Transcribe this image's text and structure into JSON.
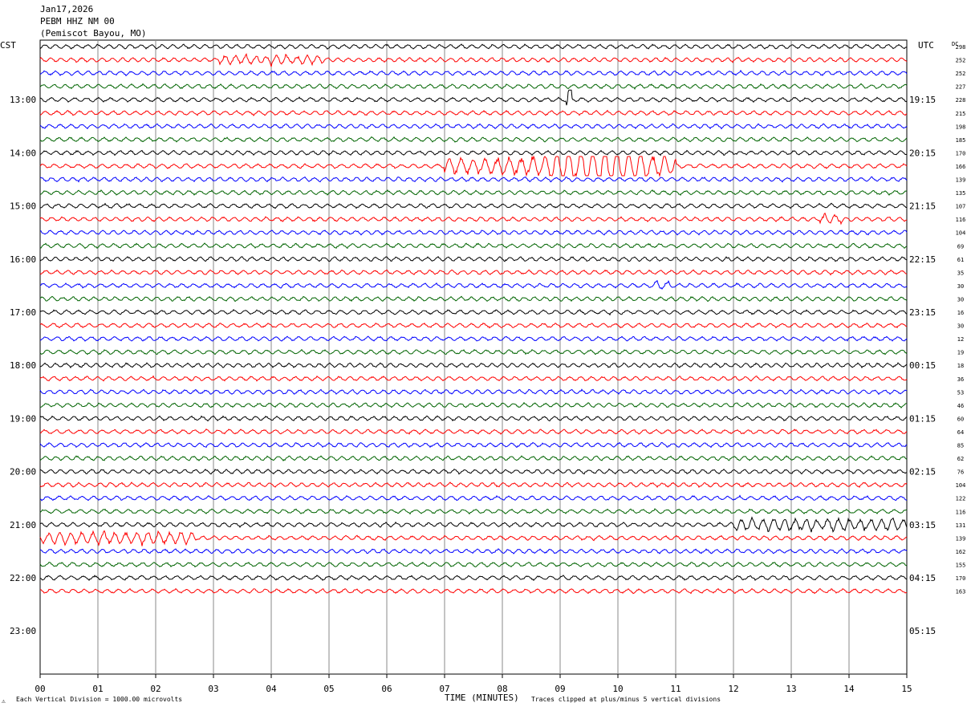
{
  "header": {
    "date": "Jan17,2026",
    "station": "PEBM HHZ NM 00",
    "location": "(Pemiscot Bayou, MO)"
  },
  "left_tz": "CST",
  "right_tz": "UTC",
  "dc_label": "DC",
  "footer": {
    "scale_note": "Each Vertical Division = 1000.00 microvolts",
    "clip_note": "Traces clipped at plus/minus 5 vertical divisions",
    "mark": "⚠"
  },
  "colors": {
    "black": "#000000",
    "red": "#ff0000",
    "blue": "#0000ff",
    "green": "#006400",
    "grid": "#888888"
  },
  "chart_data": {
    "type": "line",
    "title": "",
    "xlabel": "TIME (MINUTES)",
    "ylabel": "",
    "x_ticks": [
      "00",
      "01",
      "02",
      "03",
      "04",
      "05",
      "06",
      "07",
      "08",
      "09",
      "10",
      "11",
      "12",
      "13",
      "14",
      "15"
    ],
    "xlim": [
      0,
      15
    ],
    "grid": "vertical lines at each minute",
    "trace_interval_minutes": 15,
    "trace_color_cycle": [
      "black",
      "red",
      "blue",
      "green"
    ],
    "left_hour_labels": [
      "13:00",
      "14:00",
      "15:00",
      "16:00",
      "17:00",
      "18:00",
      "19:00",
      "20:00",
      "21:00",
      "22:00",
      "23:00"
    ],
    "right_hour_labels": [
      "19:15",
      "20:15",
      "21:15",
      "22:15",
      "23:15",
      "00:15",
      "01:15",
      "02:15",
      "03:15",
      "04:15",
      "05:15"
    ],
    "dc_offsets": [
      "298",
      "252",
      "252",
      "227",
      "228",
      "215",
      "198",
      "185",
      "170",
      "166",
      "139",
      "135",
      "107",
      "116",
      "104",
      "69",
      "61",
      "35",
      "30",
      "30",
      "16",
      "30",
      "12",
      "19",
      "18",
      "36",
      "53",
      "46",
      "60",
      "64",
      "85",
      "62",
      "76",
      "104",
      "122",
      "116",
      "131",
      "139",
      "162",
      "155",
      "170",
      "163"
    ],
    "trace_count": 42,
    "events": [
      {
        "trace": 9,
        "start_min": 7.0,
        "end_min": 11.0,
        "peak_min": 9.7,
        "level": "strong"
      },
      {
        "trace": 37,
        "start_min": 0.0,
        "end_min": 2.7,
        "level": "moderate"
      },
      {
        "trace": 36,
        "start_min": 12.0,
        "end_min": 15.0,
        "level": "moderate"
      },
      {
        "trace": 1,
        "start_min": 3.1,
        "end_min": 4.9,
        "level": "light"
      },
      {
        "trace": 4,
        "start_min": 9.1,
        "end_min": 9.2,
        "level": "spike"
      },
      {
        "trace": 18,
        "start_min": 10.6,
        "end_min": 10.9,
        "level": "light"
      },
      {
        "trace": 13,
        "start_min": 13.5,
        "end_min": 13.9,
        "level": "light"
      }
    ]
  }
}
